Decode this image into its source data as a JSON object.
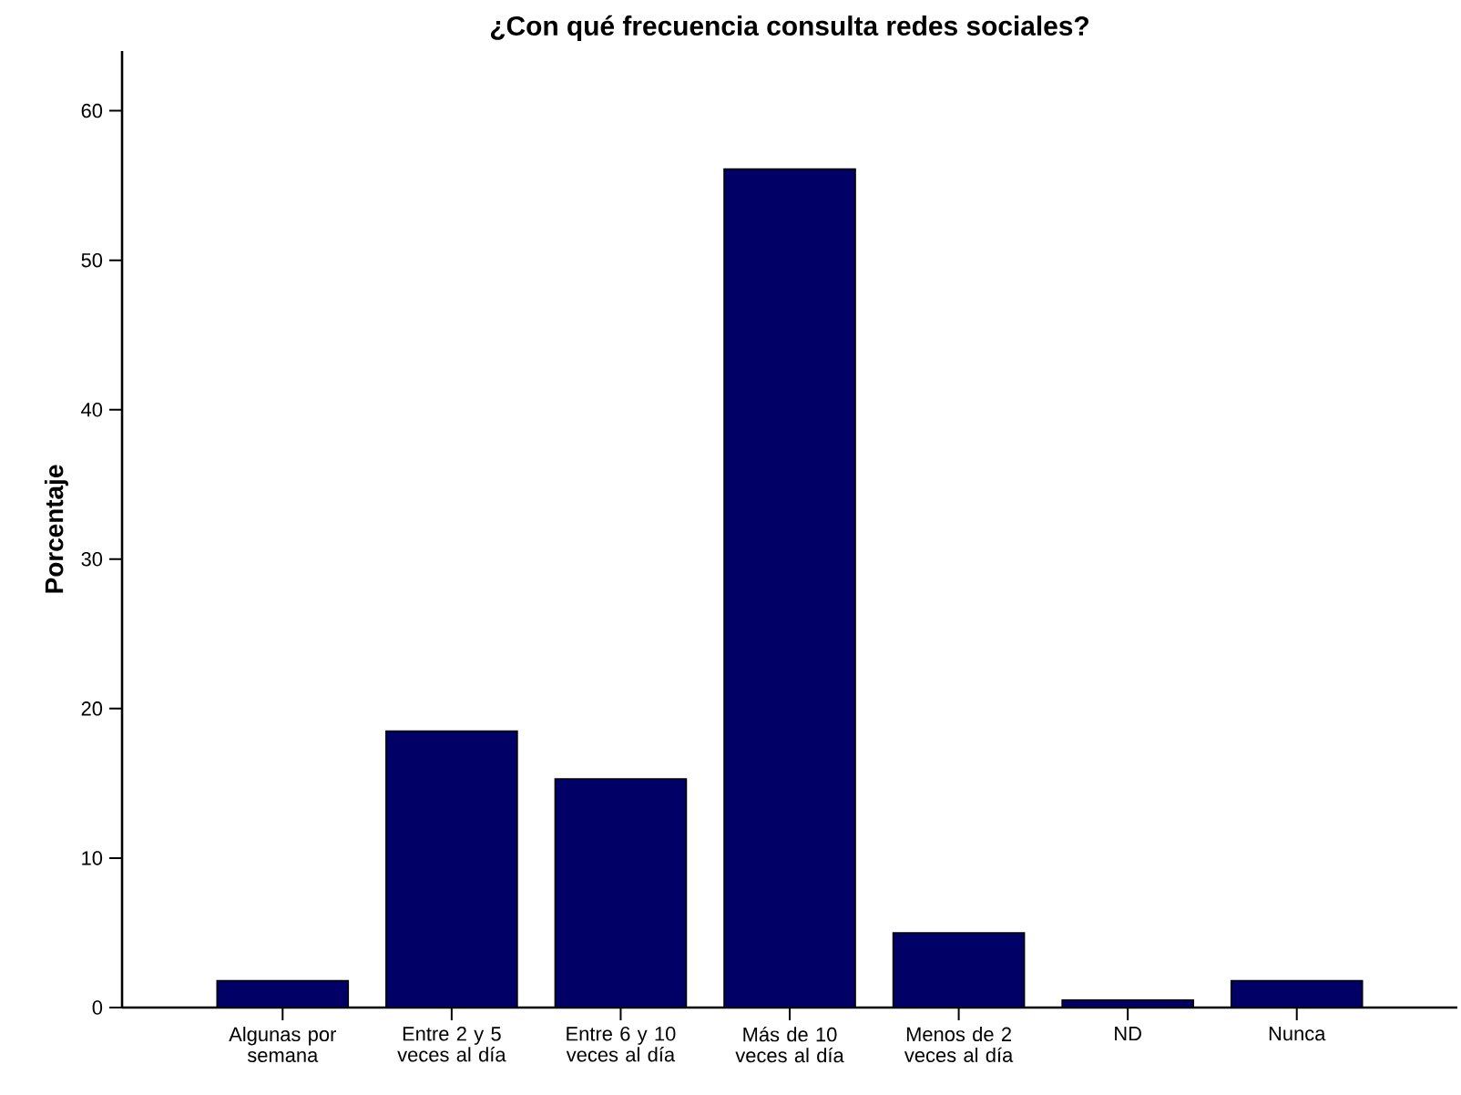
{
  "chart_data": {
    "type": "bar",
    "title": "¿Con qué frecuencia consulta redes sociales?",
    "ylabel": "Porcentaje",
    "categories": [
      "Algunas por semana",
      "Entre 2 y 5 veces al día",
      "Entre 6 y 10 veces al día",
      "Más de 10 veces al día",
      "Menos de 2 veces al día",
      "ND",
      "Nunca"
    ],
    "values": [
      1.8,
      18.5,
      15.3,
      56.1,
      5.0,
      0.5,
      1.8
    ],
    "color": "#000066",
    "ylim": [
      0,
      64
    ],
    "yticks": [
      0,
      10,
      20,
      30,
      40,
      50,
      60
    ],
    "grid": false
  }
}
